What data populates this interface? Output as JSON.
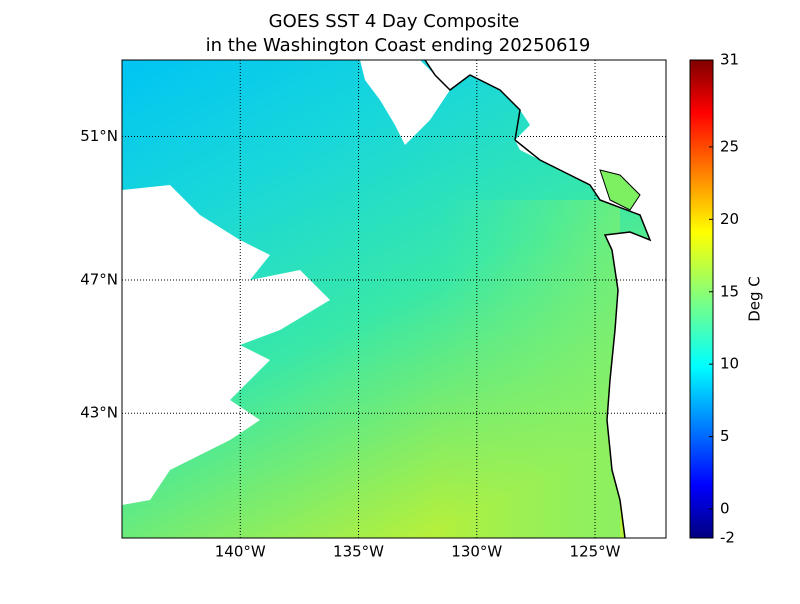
{
  "map": {
    "type": "map",
    "title": [
      "GOES SST 4 Day Composite",
      "in the Washington Coast ending 20250619"
    ],
    "xlim": [
      -145,
      -122
    ],
    "ylim": [
      39,
      53
    ],
    "xticks": [
      {
        "value": -140,
        "label": "140°W"
      },
      {
        "value": -135,
        "label": "135°W"
      },
      {
        "value": -130,
        "label": "130°W"
      },
      {
        "value": -125,
        "label": "125°W"
      }
    ],
    "yticks": [
      {
        "value": 43,
        "label": "43°N"
      },
      {
        "value": 47,
        "label": "47°N"
      },
      {
        "value": 51,
        "label": "51°N"
      }
    ],
    "grid": true,
    "colorbar": {
      "label": "Deg C",
      "lim": [
        -2,
        31
      ],
      "ticks": [
        -2,
        0,
        5,
        10,
        15,
        20,
        25,
        31
      ]
    }
  }
}
